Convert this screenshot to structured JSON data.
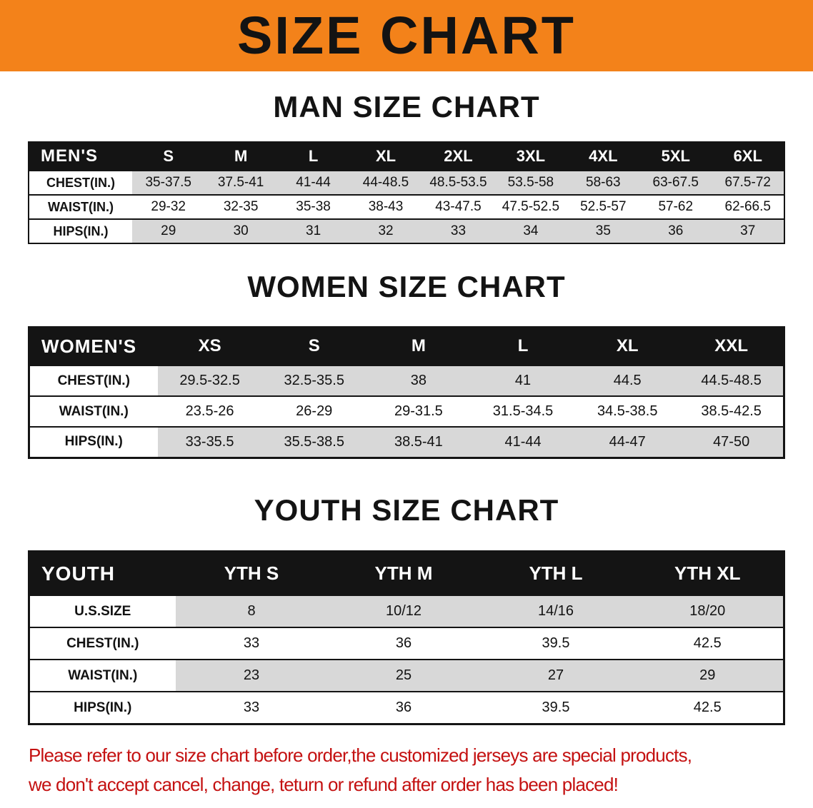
{
  "banner": {
    "title": "SIZE CHART"
  },
  "sections": [
    {
      "id": "men",
      "heading": "MAN SIZE CHART",
      "table": {
        "header": [
          "MEN'S",
          "S",
          "M",
          "L",
          "XL",
          "2XL",
          "3XL",
          "4XL",
          "5XL",
          "6XL"
        ],
        "rows": [
          {
            "label": "CHEST(IN.)",
            "values": [
              "35-37.5",
              "37.5-41",
              "41-44",
              "44-48.5",
              "48.5-53.5",
              "53.5-58",
              "58-63",
              "63-67.5",
              "67.5-72"
            ]
          },
          {
            "label": "WAIST(IN.)",
            "values": [
              "29-32",
              "32-35",
              "35-38",
              "38-43",
              "43-47.5",
              "47.5-52.5",
              "52.5-57",
              "57-62",
              "62-66.5"
            ]
          },
          {
            "label": "HIPS(IN.)",
            "values": [
              "29",
              "30",
              "31",
              "32",
              "33",
              "34",
              "35",
              "36",
              "37"
            ]
          }
        ]
      }
    },
    {
      "id": "women",
      "heading": "WOMEN SIZE CHART",
      "table": {
        "header": [
          "WOMEN'S",
          "XS",
          "S",
          "M",
          "L",
          "XL",
          "XXL"
        ],
        "rows": [
          {
            "label": "CHEST(IN.)",
            "values": [
              "29.5-32.5",
              "32.5-35.5",
              "38",
              "41",
              "44.5",
              "44.5-48.5"
            ]
          },
          {
            "label": "WAIST(IN.)",
            "values": [
              "23.5-26",
              "26-29",
              "29-31.5",
              "31.5-34.5",
              "34.5-38.5",
              "38.5-42.5"
            ]
          },
          {
            "label": "HIPS(IN.)",
            "values": [
              "33-35.5",
              "35.5-38.5",
              "38.5-41",
              "41-44",
              "44-47",
              "47-50"
            ]
          }
        ]
      }
    },
    {
      "id": "youth",
      "heading": "YOUTH SIZE CHART",
      "table": {
        "header": [
          "YOUTH",
          "YTH S",
          "YTH M",
          "YTH L",
          "YTH XL"
        ],
        "rows": [
          {
            "label": "U.S.SIZE",
            "values": [
              "8",
              "10/12",
              "14/16",
              "18/20"
            ]
          },
          {
            "label": "CHEST(IN.)",
            "values": [
              "33",
              "36",
              "39.5",
              "42.5"
            ]
          },
          {
            "label": "WAIST(IN.)",
            "values": [
              "23",
              "25",
              "27",
              "29"
            ]
          },
          {
            "label": "HIPS(IN.)",
            "values": [
              "33",
              "36",
              "39.5",
              "42.5"
            ]
          }
        ]
      }
    }
  ],
  "disclaimer": {
    "line1": "Please refer to our size chart before order,the customized jerseys are special products,",
    "line2": "we don't accept cancel, change, teturn or refund after order has been placed!"
  },
  "colors": {
    "banner_orange": "#f3821a",
    "table_header_black": "#141414",
    "row_stripe_gray": "#d8d8d8",
    "disclaimer_red": "#c41111"
  }
}
